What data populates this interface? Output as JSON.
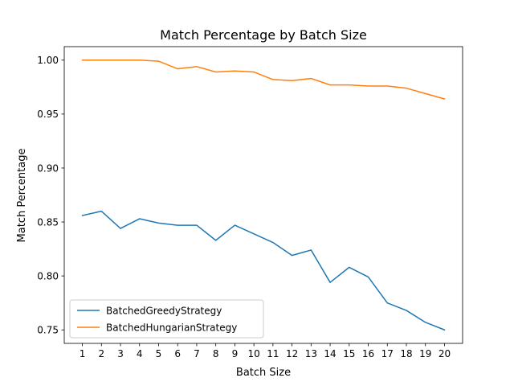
{
  "chart_data": {
    "type": "line",
    "title": "Match Percentage by Batch Size",
    "xlabel": "Batch Size",
    "ylabel": "Match Percentage",
    "x": [
      1,
      2,
      3,
      4,
      5,
      6,
      7,
      8,
      9,
      10,
      11,
      12,
      13,
      14,
      15,
      16,
      17,
      18,
      19,
      20
    ],
    "xlim": [
      0.05,
      20.95
    ],
    "ylim": [
      0.7375,
      1.0125
    ],
    "yticks": [
      0.75,
      0.8,
      0.85,
      0.9,
      0.95,
      1.0
    ],
    "ytick_labels": [
      "0.75",
      "0.80",
      "0.85",
      "0.90",
      "0.95",
      "1.00"
    ],
    "grid": false,
    "legend_position": "lower-left",
    "series": [
      {
        "name": "BatchedGreedyStrategy",
        "color": "#1f77b4",
        "values": [
          0.856,
          0.86,
          0.844,
          0.853,
          0.849,
          0.847,
          0.847,
          0.833,
          0.847,
          0.839,
          0.831,
          0.819,
          0.824,
          0.794,
          0.808,
          0.799,
          0.775,
          0.768,
          0.757,
          0.75
        ]
      },
      {
        "name": "BatchedHungarianStrategy",
        "color": "#ff7f0e",
        "values": [
          1.0,
          1.0,
          1.0,
          1.0,
          0.999,
          0.992,
          0.994,
          0.989,
          0.99,
          0.989,
          0.982,
          0.981,
          0.983,
          0.977,
          0.977,
          0.976,
          0.976,
          0.974,
          0.969,
          0.964
        ]
      }
    ]
  }
}
